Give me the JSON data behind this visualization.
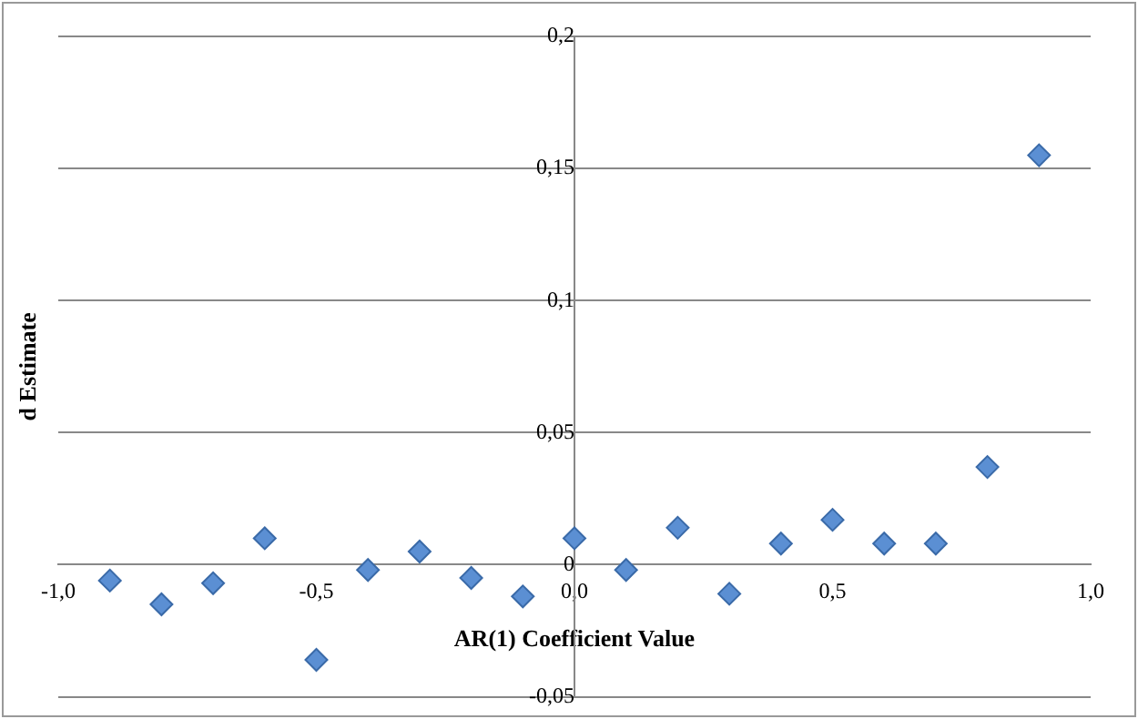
{
  "chart_data": {
    "type": "scatter",
    "xlabel": "AR(1) Coefficient Value",
    "ylabel": "d Estimate",
    "x": [
      -0.9,
      -0.8,
      -0.7,
      -0.6,
      -0.5,
      -0.4,
      -0.3,
      -0.2,
      -0.1,
      0.0,
      0.1,
      0.2,
      0.3,
      0.4,
      0.5,
      0.6,
      0.7,
      0.8,
      0.9
    ],
    "series": [
      {
        "color": "#5b8fd3",
        "values": [
          -0.006,
          -0.015,
          -0.007,
          0.01,
          -0.036,
          -0.002,
          0.005,
          -0.005,
          -0.012,
          0.01,
          -0.002,
          0.014,
          -0.011,
          0.008,
          0.017,
          0.008,
          0.008,
          0.037,
          0.155
        ]
      }
    ],
    "xlim": [
      -1.0,
      1.0
    ],
    "xticks": [
      {
        "value": -1.0,
        "label": "-1,0"
      },
      {
        "value": -0.5,
        "label": "-0,5"
      },
      {
        "value": 0.0,
        "label": "0,0"
      },
      {
        "value": 0.5,
        "label": "0,5"
      },
      {
        "value": 1.0,
        "label": "1,0"
      }
    ],
    "ylim": [
      -0.05,
      0.2
    ],
    "yticks": [
      {
        "value": -0.05,
        "label": "-0,05"
      },
      0,
      {
        "value": 0.05,
        "label": "0,05"
      },
      {
        "value": 0.1,
        "label": "0,1"
      },
      {
        "value": 0.15,
        "label": "0,15"
      },
      {
        "value": 0.2,
        "label": "0,2"
      }
    ],
    "grid": "y",
    "legend": false,
    "marker": "diamond"
  }
}
